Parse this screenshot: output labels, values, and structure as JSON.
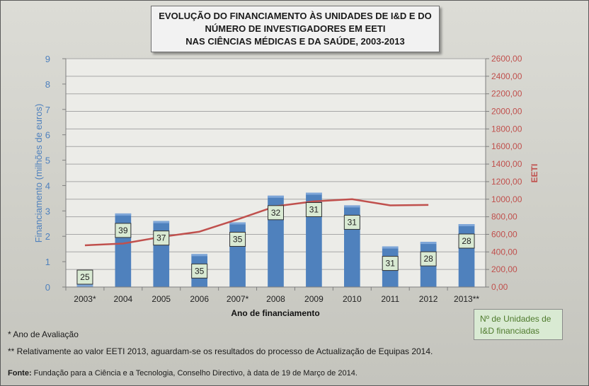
{
  "title": {
    "line1": "EVOLUÇÃO DO FINANCIAMENTO ÀS UNIDADES DE I&D E DO",
    "line2": "NÚMERO DE INVESTIGADORES EM EETI",
    "line3": "NAS CIÊNCIAS MÉDICAS E DA SAÚDE, 2003-2013"
  },
  "legend": {
    "line1": "Nº de Unidades de",
    "line2": "I&D  financiadas"
  },
  "notes": {
    "note1": "* Ano de Avaliação",
    "note2": "** Relativamente ao valor EETI 2013, aguardam-se os resultados do processo de Actualização de Equipas 2014."
  },
  "source": {
    "label": "Fonte:",
    "text": " Fundação para a Ciência e a Tecnologia, Conselho Directivo, à data de 19 de Março de 2014."
  },
  "colors": {
    "bars": "#4f81bd",
    "line": "#c0504d",
    "badge_fill": "#d9ead3",
    "plot_bg": "#ecece8",
    "grid": "#a6a6a6"
  },
  "chart_data": {
    "type": "bar",
    "xlabel": "Ano de financiamento",
    "ylabel": "Financiamento (milhões de euros)",
    "y2label": "EETI",
    "categories": [
      "2003*",
      "2004",
      "2005",
      "2006",
      "2007*",
      "2008",
      "2009",
      "2010",
      "2011",
      "2012",
      "2013**"
    ],
    "ylim": [
      0,
      9
    ],
    "yticks": [
      "0",
      "1",
      "2",
      "3",
      "4",
      "5",
      "6",
      "7",
      "8",
      "9"
    ],
    "y2lim": [
      0,
      2600
    ],
    "y2ticks": [
      "0,00",
      "200,00",
      "400,00",
      "600,00",
      "800,00",
      "1000,00",
      "1200,00",
      "1400,00",
      "1600,00",
      "1800,00",
      "2000,00",
      "2200,00",
      "2400,00",
      "2600,00"
    ],
    "grid": true,
    "series": [
      {
        "name": "Financiamento",
        "type": "bar",
        "axis": "left",
        "values": [
          0.1,
          2.9,
          2.6,
          1.3,
          2.55,
          3.6,
          3.72,
          3.22,
          1.6,
          1.78,
          2.48
        ]
      },
      {
        "name": "EETI",
        "type": "line",
        "axis": "right",
        "values": [
          475,
          495,
          570,
          630,
          770,
          920,
          975,
          1000,
          930,
          935,
          null
        ]
      }
    ],
    "unit_counts": [
      "25",
      "39",
      "37",
      "35",
      "35",
      "32",
      "31",
      "31",
      "31",
      "28",
      "28"
    ],
    "legend_position": "bottom-right"
  }
}
